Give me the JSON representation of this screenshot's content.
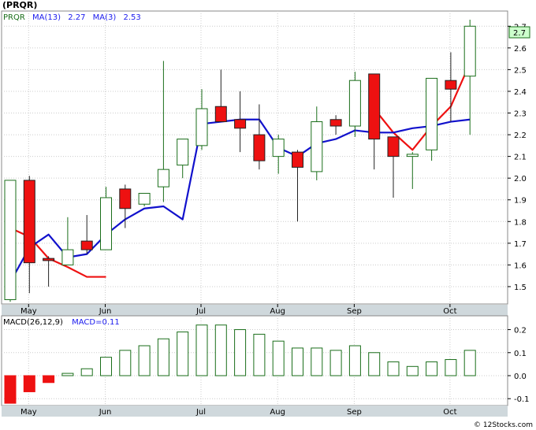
{
  "ticker_label": "(PRQR)",
  "legend": {
    "symbol": "PRQR",
    "ma_long_label": "MA(13)",
    "ma_long_value": "2.27",
    "ma_short_label": "MA(3)",
    "ma_short_value": "2.53"
  },
  "macd_legend": {
    "label": "MACD(26,12,9)",
    "value_label": "MACD=0.11"
  },
  "watermark": "© 12Stocks.com",
  "colors": {
    "up_candle": "#1a6e1a",
    "down_candle_fill": "#ee1111",
    "ma_short_line": "#ee1111",
    "ma_long_line": "#1111cc",
    "macd_bar": "#1a6e1a",
    "macd_bar_negative": "#ee1111",
    "label_blue": "#1a1aee",
    "grid": "#cccccc"
  },
  "chart_data": [
    {
      "type": "candlestick",
      "title": "(PRQR)",
      "x_tick_labels": [
        "May",
        "Jun",
        "Jul",
        "Aug",
        "Sep",
        "Oct"
      ],
      "x_tick_weeks": [
        1,
        5,
        10,
        14,
        18,
        23
      ],
      "ylim": [
        1.42,
        2.77
      ],
      "y_ticks": [
        1.5,
        1.6,
        1.7,
        1.8,
        1.9,
        2.0,
        2.1,
        2.2,
        2.3,
        2.4,
        2.5,
        2.6,
        2.7
      ],
      "y_tick_labels": [
        "1.5",
        "1.6",
        "1.7",
        "1.8",
        "1.9",
        "2.0",
        "2.1",
        "2.2",
        "2.3",
        "2.4",
        "2.5",
        "2.6",
        "2.7"
      ],
      "grid": true,
      "last_price_label": "2.7",
      "candles": [
        {
          "o": 1.44,
          "h": 1.99,
          "l": 1.43,
          "c": 1.99
        },
        {
          "o": 1.99,
          "h": 2.01,
          "l": 1.47,
          "c": 1.61
        },
        {
          "o": 1.63,
          "h": 1.64,
          "l": 1.5,
          "c": 1.62
        },
        {
          "o": 1.6,
          "h": 1.82,
          "l": 1.6,
          "c": 1.67
        },
        {
          "o": 1.71,
          "h": 1.83,
          "l": 1.65,
          "c": 1.67
        },
        {
          "o": 1.67,
          "h": 1.96,
          "l": 1.67,
          "c": 1.91
        },
        {
          "o": 1.95,
          "h": 1.97,
          "l": 1.77,
          "c": 1.86
        },
        {
          "o": 1.88,
          "h": 1.93,
          "l": 1.87,
          "c": 1.93
        },
        {
          "o": 1.96,
          "h": 2.54,
          "l": 1.89,
          "c": 2.04
        },
        {
          "o": 2.06,
          "h": 2.18,
          "l": 2.0,
          "c": 2.18
        },
        {
          "o": 2.15,
          "h": 2.41,
          "l": 2.13,
          "c": 2.32
        },
        {
          "o": 2.33,
          "h": 2.5,
          "l": 2.26,
          "c": 2.26
        },
        {
          "o": 2.27,
          "h": 2.4,
          "l": 2.12,
          "c": 2.23
        },
        {
          "o": 2.2,
          "h": 2.34,
          "l": 2.04,
          "c": 2.08
        },
        {
          "o": 2.1,
          "h": 2.2,
          "l": 2.02,
          "c": 2.18
        },
        {
          "o": 2.12,
          "h": 2.13,
          "l": 1.8,
          "c": 2.05
        },
        {
          "o": 2.03,
          "h": 2.33,
          "l": 1.99,
          "c": 2.26
        },
        {
          "o": 2.27,
          "h": 2.29,
          "l": 2.2,
          "c": 2.24
        },
        {
          "o": 2.24,
          "h": 2.49,
          "l": 2.19,
          "c": 2.45
        },
        {
          "o": 2.48,
          "h": 2.48,
          "l": 2.04,
          "c": 2.18
        },
        {
          "o": 2.19,
          "h": 2.19,
          "l": 1.91,
          "c": 2.1
        },
        {
          "o": 2.1,
          "h": 2.12,
          "l": 1.95,
          "c": 2.11
        },
        {
          "o": 2.13,
          "h": 2.46,
          "l": 2.08,
          "c": 2.46
        },
        {
          "o": 2.45,
          "h": 2.58,
          "l": 2.26,
          "c": 2.41
        },
        {
          "o": 2.47,
          "h": 2.73,
          "l": 2.2,
          "c": 2.7
        }
      ],
      "series": [
        {
          "name": "MA(3)",
          "values": [
            1.77,
            1.73,
            1.63,
            1.59,
            1.545,
            1.545,
            null,
            null,
            null,
            null,
            null,
            null,
            null,
            null,
            null,
            null,
            null,
            null,
            null,
            2.32,
            2.21,
            2.13,
            2.24,
            2.33,
            2.53
          ]
        },
        {
          "name": "MA(13)",
          "values": [
            1.52,
            1.68,
            1.74,
            1.635,
            1.65,
            1.74,
            1.81,
            1.86,
            1.87,
            1.81,
            2.25,
            2.26,
            2.27,
            2.27,
            2.14,
            2.1,
            2.16,
            2.18,
            2.22,
            2.21,
            2.21,
            2.23,
            2.24,
            2.26,
            2.27
          ]
        }
      ]
    },
    {
      "type": "bar",
      "title": "MACD(26,12,9)",
      "ylim": [
        -0.13,
        0.26
      ],
      "y_ticks": [
        -0.1,
        0.0,
        0.1,
        0.2
      ],
      "y_tick_labels": [
        "-0.1",
        "0.0",
        "0.1",
        "0.2"
      ],
      "x_tick_labels": [
        "May",
        "Jun",
        "Jul",
        "Aug",
        "Sep",
        "Oct"
      ],
      "values": [
        -0.12,
        -0.07,
        -0.03,
        0.01,
        0.03,
        0.08,
        0.11,
        0.13,
        0.16,
        0.19,
        0.22,
        0.22,
        0.2,
        0.18,
        0.15,
        0.12,
        0.12,
        0.11,
        0.13,
        0.1,
        0.06,
        0.04,
        0.06,
        0.07,
        0.11
      ]
    }
  ]
}
